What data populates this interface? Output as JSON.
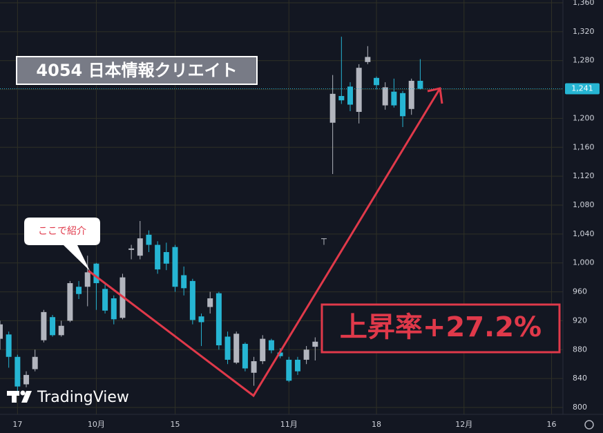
{
  "chart_data": {
    "type": "candlestick",
    "title": "4054 日本情報クリエイト",
    "annotations": [
      "ここで紹介",
      "上昇率+27.2%"
    ],
    "watermark": "TradingView",
    "up_color": "#b2b5be",
    "down_color": "#26b5d3",
    "grid": true,
    "x": [
      -2,
      -1,
      0,
      1,
      2,
      3,
      4,
      5,
      6,
      7,
      8,
      9,
      10,
      11,
      12,
      13,
      14,
      15,
      16,
      17,
      18,
      19,
      20,
      21,
      22,
      23,
      24,
      25,
      26,
      27,
      28,
      29,
      30,
      31,
      32,
      33,
      34,
      35,
      36,
      37,
      38,
      39,
      40,
      41,
      42,
      43,
      44,
      45,
      46
    ],
    "open": [
      895,
      901,
      870,
      832,
      853,
      893,
      925,
      900,
      920,
      967,
      967,
      999,
      964,
      951,
      924,
      1018,
      1010,
      1039,
      1025,
      1015,
      1022,
      983,
      975,
      926,
      939,
      958,
      898,
      862,
      888,
      848,
      864,
      893,
      876,
      866,
      866,
      866,
      884,
      1033,
      1194,
      1231,
      1244,
      1209,
      1278,
      1256,
      1218,
      1237,
      1235,
      1213,
      1252
    ],
    "high": [
      920,
      905,
      873,
      850,
      880,
      935,
      928,
      920,
      975,
      975,
      1010,
      1000,
      970,
      955,
      985,
      1025,
      1058,
      1045,
      1030,
      1028,
      1025,
      995,
      978,
      930,
      960,
      960,
      905,
      905,
      890,
      870,
      900,
      895,
      882,
      870,
      870,
      885,
      897,
      1034,
      1260,
      1313,
      1250,
      1275,
      1300,
      1258,
      1250,
      1255,
      1238,
      1255,
      1282
    ],
    "low": [
      880,
      855,
      822,
      828,
      850,
      890,
      898,
      898,
      918,
      950,
      940,
      935,
      930,
      915,
      922,
      1005,
      1005,
      1015,
      985,
      990,
      960,
      955,
      915,
      885,
      930,
      880,
      860,
      860,
      850,
      830,
      860,
      875,
      868,
      835,
      845,
      860,
      865,
      1025,
      1123,
      1220,
      1210,
      1193,
      1275,
      1240,
      1212,
      1215,
      1188,
      1205,
      1240
    ],
    "close": [
      915,
      870,
      829,
      845,
      870,
      932,
      900,
      913,
      972,
      957,
      987,
      972,
      934,
      922,
      980,
      1020,
      1034,
      1025,
      991,
      999,
      967,
      965,
      921,
      918,
      951,
      886,
      866,
      902,
      854,
      864,
      895,
      879,
      871,
      837,
      850,
      880,
      891,
      1034,
      1234,
      1225,
      1219,
      1270,
      1285,
      1246,
      1243,
      1218,
      1203,
      1252,
      1241
    ],
    "last_price": {
      "value": 1241,
      "label": "1,241"
    },
    "xlim": [
      -2,
      62.3
    ],
    "xticks": [
      {
        "value": 0,
        "label": "17"
      },
      {
        "value": 9,
        "label": "10月"
      },
      {
        "value": 18,
        "label": "15"
      },
      {
        "value": 31,
        "label": "11月"
      },
      {
        "value": 41,
        "label": "18"
      },
      {
        "value": 51,
        "label": "12月"
      },
      {
        "value": 61,
        "label": "16"
      }
    ],
    "ylim": [
      800,
      1360
    ],
    "yticks": [
      800,
      840,
      880,
      920,
      960,
      {
        "value": 1000,
        "label": "1,000"
      },
      {
        "value": 1040,
        "label": "1,040"
      },
      {
        "value": 1080,
        "label": "1,080"
      },
      {
        "value": 1120,
        "label": "1,120"
      },
      {
        "value": 1160,
        "label": "1,160"
      },
      {
        "value": 1200,
        "label": "1,200"
      },
      {
        "value": 1240,
        "label": "1,240"
      },
      {
        "value": 1280,
        "label": "1,280"
      },
      {
        "value": 1320,
        "label": "1,320"
      },
      {
        "value": 1360,
        "label": "1,360"
      }
    ]
  }
}
